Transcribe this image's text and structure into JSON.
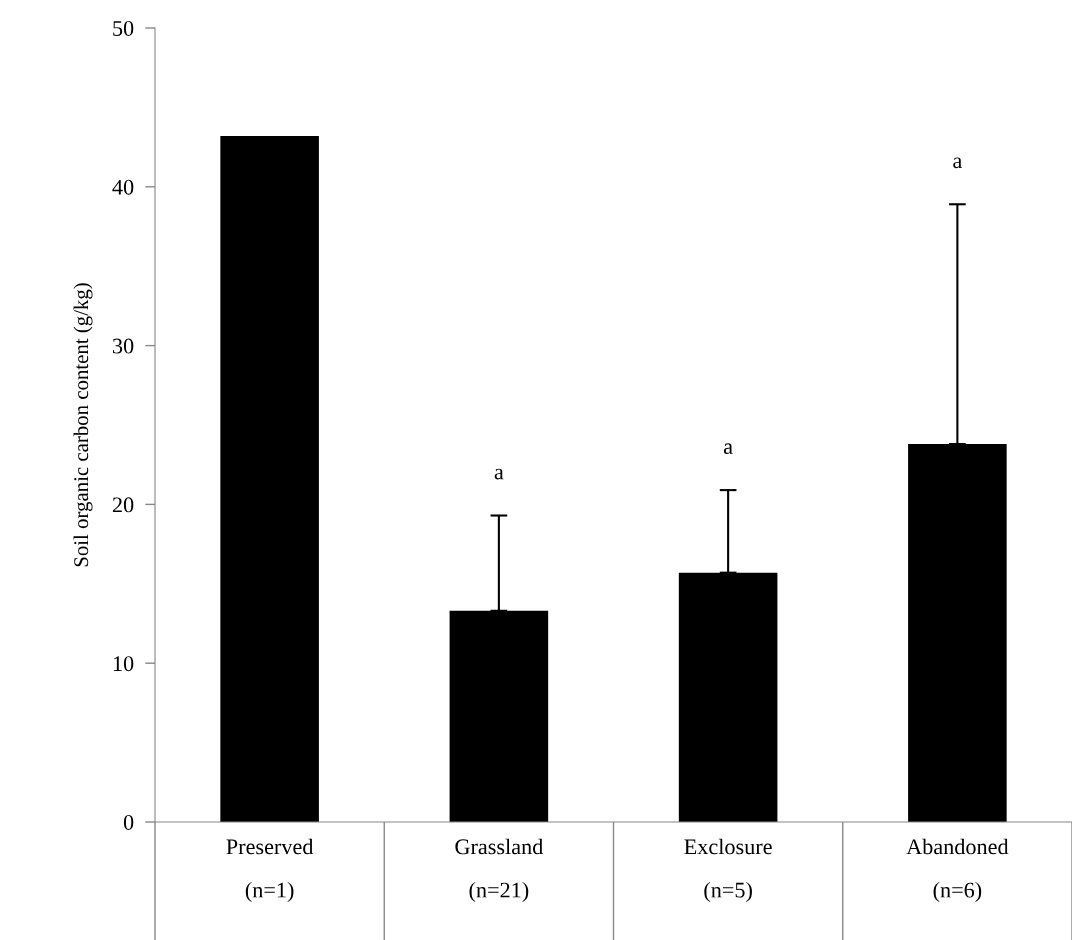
{
  "chart_data": {
    "type": "bar",
    "ylabel": "Soil organic carbon content (g/kg)",
    "categories": [
      "Preserved\n(n=1)",
      "Grassland\n(n=21)",
      "Exclosure\n(n=5)",
      "Abandoned\n(n=6)"
    ],
    "values": [
      43.2,
      13.3,
      15.7,
      23.8
    ],
    "errors": [
      null,
      [
        13.3,
        19.3
      ],
      [
        15.7,
        20.9
      ],
      [
        23.8,
        38.9
      ]
    ],
    "color": "#000000",
    "ylim": [
      0,
      50
    ],
    "yticks": [
      0,
      10,
      20,
      30,
      40,
      50
    ],
    "grid": false,
    "annotations": [
      "a",
      "a",
      "a"
    ]
  }
}
